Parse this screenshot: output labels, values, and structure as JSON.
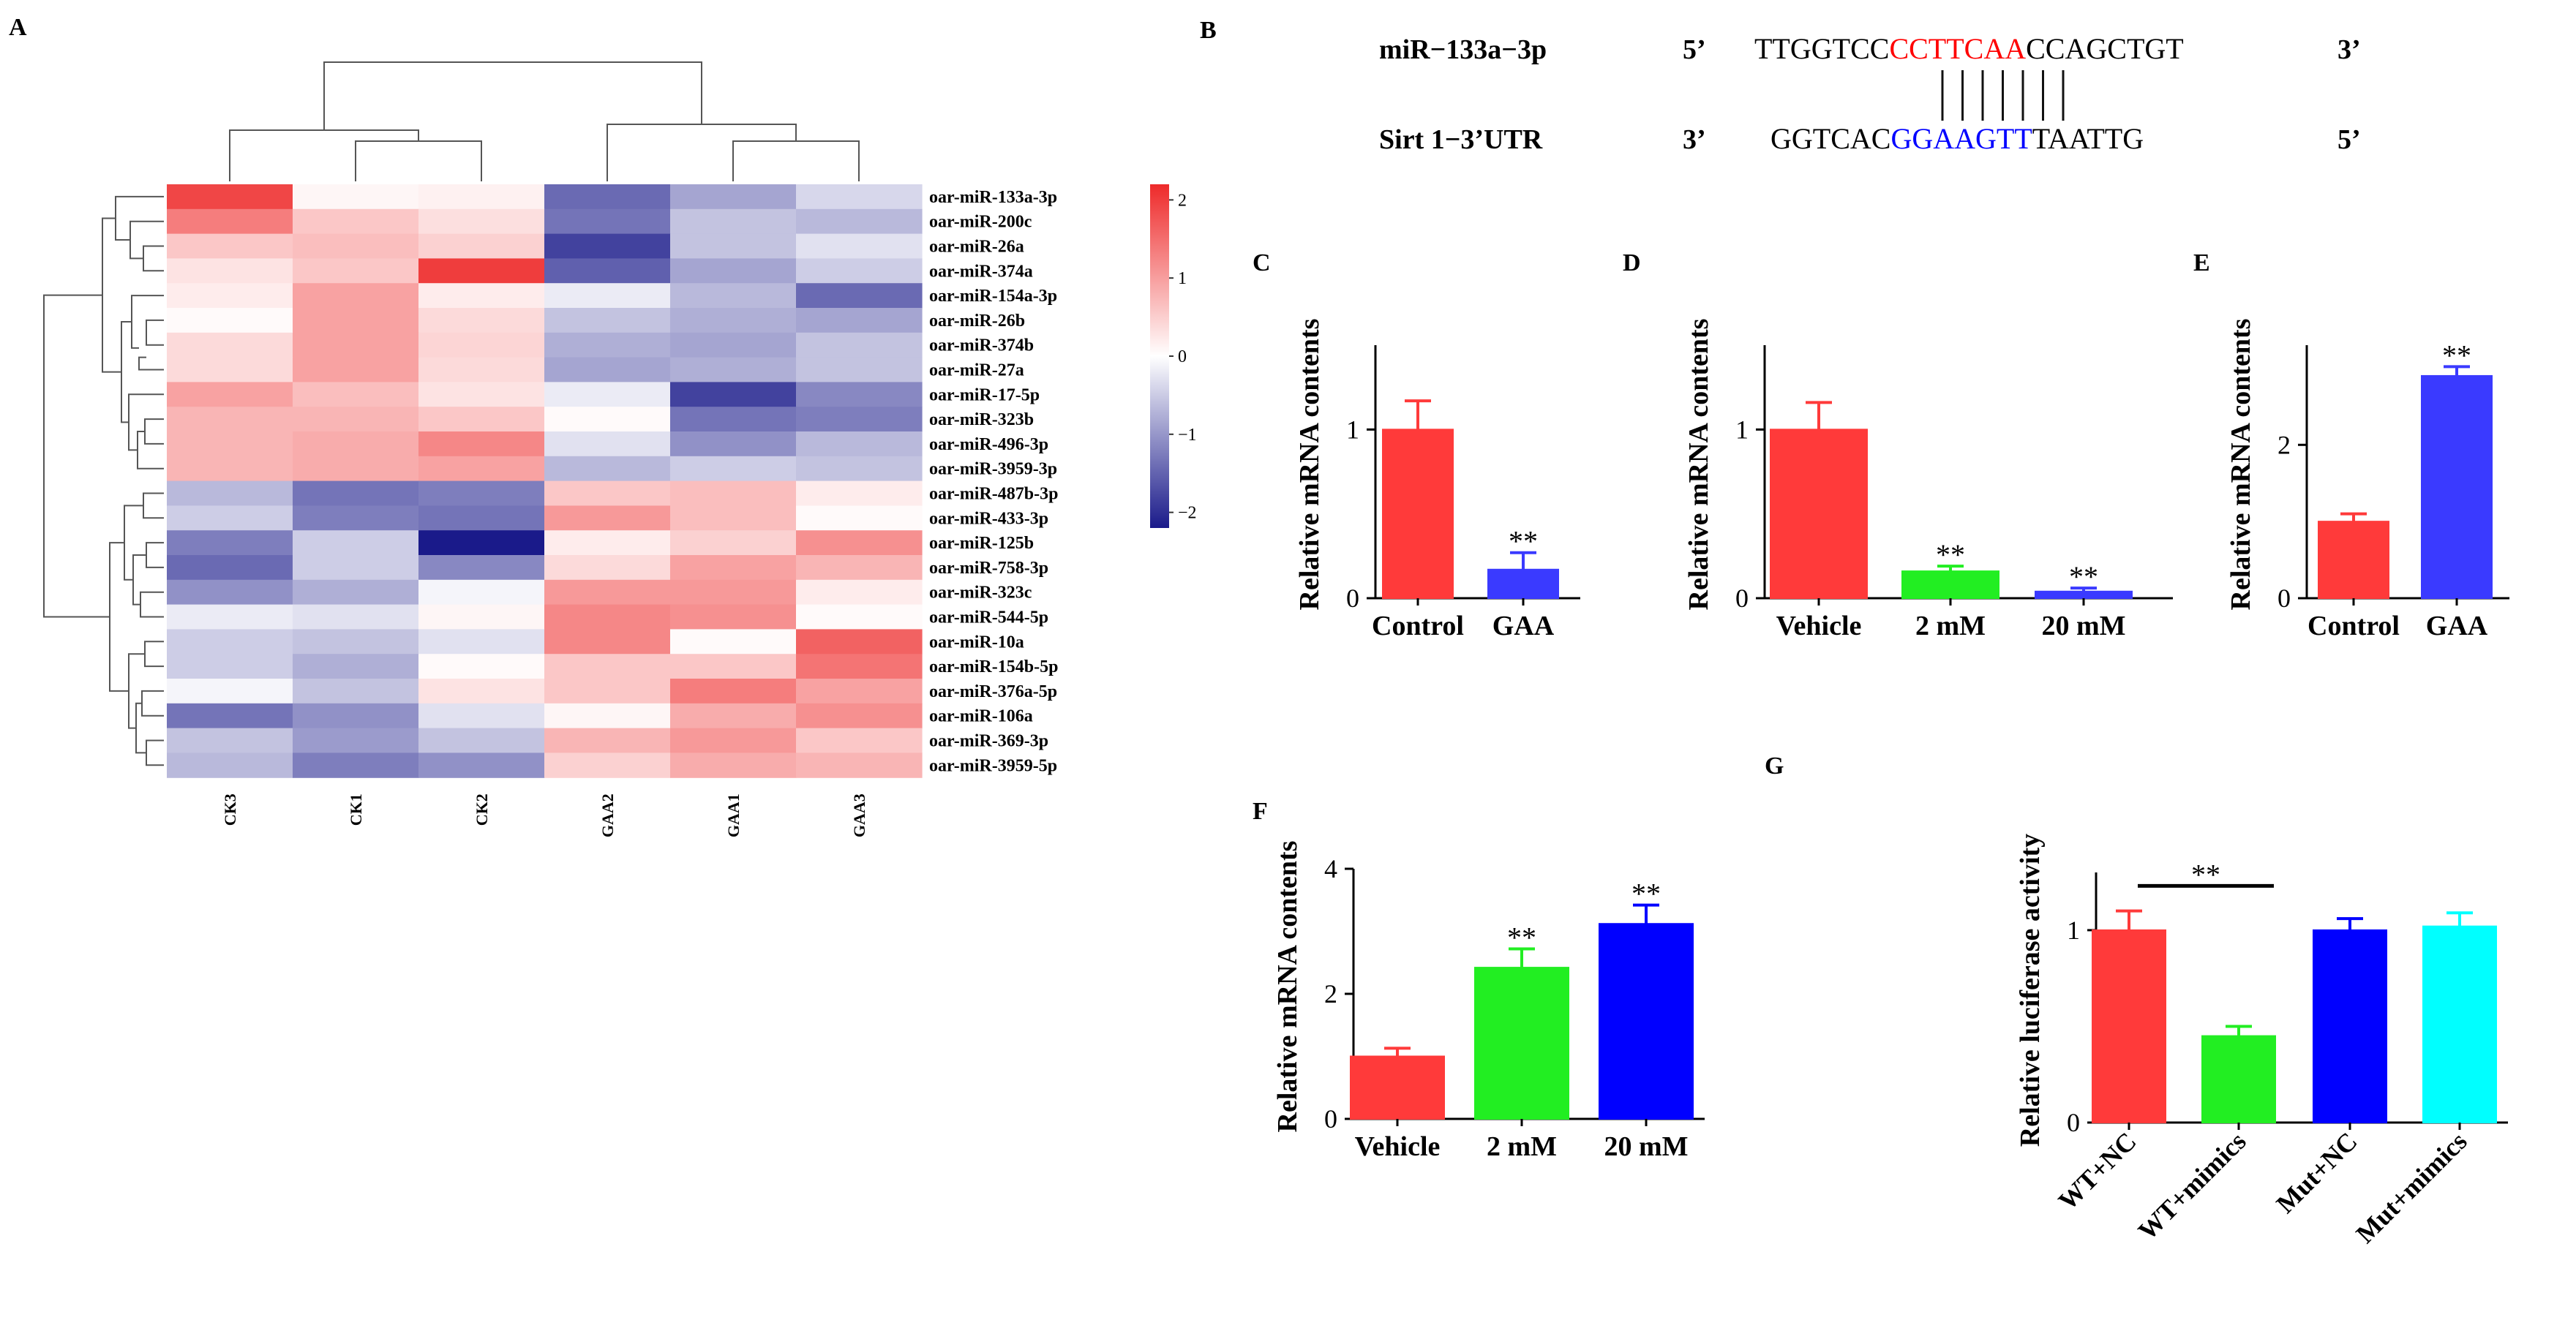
{
  "chart_data": [
    {
      "panel": "A",
      "type": "heatmap",
      "columns": [
        "CK3",
        "CK1",
        "CK2",
        "GAA2",
        "GAA1",
        "GAA3"
      ],
      "rows": [
        "oar-miR-133a-3p",
        "oar-miR-200c",
        "oar-miR-26a",
        "oar-miR-374a",
        "oar-miR-154a-3p",
        "oar-miR-26b",
        "oar-miR-374b",
        "oar-miR-27a",
        "oar-miR-17-5p",
        "oar-miR-323b",
        "oar-miR-496-3p",
        "oar-miR-3959-3p",
        "oar-miR-487b-3p",
        "oar-miR-433-3p",
        "oar-miR-125b",
        "oar-miR-758-3p",
        "oar-miR-323c",
        "oar-miR-544-5p",
        "oar-miR-10a",
        "oar-miR-154b-5p",
        "oar-miR-376a-5p",
        "oar-miR-106a",
        "oar-miR-369-3p",
        "oar-miR-3959-5p"
      ],
      "values": [
        [
          2.0,
          0.1,
          0.15,
          -1.5,
          -0.9,
          -0.4
        ],
        [
          1.4,
          0.6,
          0.35,
          -1.4,
          -0.6,
          -0.7
        ],
        [
          0.6,
          0.7,
          0.5,
          -1.9,
          -0.6,
          -0.3
        ],
        [
          0.3,
          0.6,
          2.1,
          -1.6,
          -0.9,
          -0.5
        ],
        [
          0.2,
          1.0,
          0.2,
          -0.2,
          -0.7,
          -1.5
        ],
        [
          0.05,
          1.0,
          0.4,
          -0.6,
          -0.8,
          -0.9
        ],
        [
          0.4,
          1.0,
          0.45,
          -0.8,
          -0.9,
          -0.6
        ],
        [
          0.4,
          1.0,
          0.4,
          -0.9,
          -0.8,
          -0.6
        ],
        [
          1.0,
          0.7,
          0.3,
          -0.2,
          -1.9,
          -1.2
        ],
        [
          0.8,
          0.8,
          0.6,
          0.05,
          -1.4,
          -1.3
        ],
        [
          0.8,
          0.9,
          1.3,
          -0.3,
          -1.1,
          -0.7
        ],
        [
          0.8,
          0.9,
          1.0,
          -0.7,
          -0.5,
          -0.6
        ],
        [
          -0.7,
          -1.4,
          -1.3,
          0.6,
          0.7,
          0.2
        ],
        [
          -0.5,
          -1.3,
          -1.4,
          1.1,
          0.7,
          0.05
        ],
        [
          -1.3,
          -0.5,
          -2.3,
          0.2,
          0.5,
          1.2
        ],
        [
          -1.5,
          -0.5,
          -1.2,
          0.4,
          1.0,
          0.8
        ],
        [
          -1.1,
          -0.8,
          -0.1,
          1.1,
          1.1,
          0.2
        ],
        [
          -0.2,
          -0.3,
          0.1,
          1.3,
          1.2,
          0.05
        ],
        [
          -0.5,
          -0.6,
          -0.3,
          1.3,
          0.05,
          1.7
        ],
        [
          -0.5,
          -0.8,
          0.05,
          0.6,
          0.6,
          1.5
        ],
        [
          -0.1,
          -0.6,
          0.3,
          0.6,
          1.4,
          1.0
        ],
        [
          -1.4,
          -1.1,
          -0.3,
          0.1,
          0.9,
          1.2
        ],
        [
          -0.6,
          -1.0,
          -0.6,
          0.8,
          1.1,
          0.6
        ],
        [
          -0.7,
          -1.3,
          -1.1,
          0.5,
          0.9,
          0.8
        ]
      ],
      "colorbar": {
        "ticks": [
          "2",
          "1",
          "0",
          "−1",
          "−2"
        ],
        "ylim": [
          -2.2,
          2.2
        ]
      },
      "colors": {
        "high": "#ee2a2a",
        "mid": "#ffffff",
        "low": "#1a1a8a"
      }
    },
    {
      "panel": "B",
      "type": "table",
      "rows": [
        {
          "name": "miR−133a−3p",
          "left": "5’",
          "pre": "TTGGTCC",
          "seed": "CCTTCAA",
          "post": "CCAGCTGT",
          "right": "3’",
          "seed_color": "#ff0000"
        },
        {
          "name": "Sirt 1−3’UTR",
          "left": "3’",
          "pre": "GGTCAC",
          "seed": "GGAAGTT",
          "post": "TAATTG",
          "right": "5’",
          "seed_color": "#0000ff"
        }
      ],
      "pairings": 7
    },
    {
      "panel": "C",
      "type": "bar",
      "ylabel": "Relative mRNA contents",
      "ylim": [
        0,
        1.5
      ],
      "yticks": [
        0,
        1
      ],
      "categories": [
        "Control",
        "GAA"
      ],
      "values": [
        1.0,
        0.17
      ],
      "errors": [
        0.17,
        0.1
      ],
      "colors": [
        "#ff3a3a",
        "#3a3aff"
      ],
      "annotations": [
        "",
        "**"
      ]
    },
    {
      "panel": "D",
      "type": "bar",
      "ylabel": "Relative mRNA contents",
      "ylim": [
        0,
        1.5
      ],
      "yticks": [
        0,
        1
      ],
      "categories": [
        "Vehicle",
        "2 mM",
        "20 mM"
      ],
      "values": [
        1.0,
        0.16,
        0.04
      ],
      "errors": [
        0.16,
        0.03,
        0.02
      ],
      "colors": [
        "#ff3a3a",
        "#22ee22",
        "#3a3aff"
      ],
      "annotations": [
        "",
        "**",
        "**"
      ]
    },
    {
      "panel": "E",
      "type": "bar",
      "ylabel": "Relative mRNA contents",
      "ylim": [
        0,
        3.3
      ],
      "yticks": [
        0,
        2
      ],
      "categories": [
        "Control",
        "GAA"
      ],
      "values": [
        1.0,
        2.9
      ],
      "errors": [
        0.1,
        0.12
      ],
      "colors": [
        "#ff3a3a",
        "#3a3aff"
      ],
      "annotations": [
        "",
        "**"
      ]
    },
    {
      "panel": "F",
      "type": "bar",
      "ylabel": "Relative mRNA contents",
      "ylim": [
        0,
        4
      ],
      "yticks": [
        0,
        2,
        4
      ],
      "categories": [
        "Vehicle",
        "2 mM",
        "20 mM"
      ],
      "values": [
        1.0,
        2.42,
        3.12
      ],
      "errors": [
        0.13,
        0.3,
        0.3
      ],
      "colors": [
        "#ff3a3a",
        "#22ee22",
        "#0000ff"
      ],
      "annotations": [
        "",
        "**",
        "**"
      ]
    },
    {
      "panel": "G",
      "type": "bar",
      "ylabel": "Relative luciferase activity",
      "ylim": [
        0,
        1.3
      ],
      "yticks": [
        0,
        1
      ],
      "categories": [
        "WT+NC",
        "WT+mimics",
        "Mut+NC",
        "Mut+mimics"
      ],
      "values": [
        1.0,
        0.45,
        1.0,
        1.02
      ],
      "errors": [
        0.1,
        0.05,
        0.06,
        0.07
      ],
      "colors": [
        "#ff3a3a",
        "#22ee22",
        "#0000ff",
        "#00ffff"
      ],
      "annotations": [
        "",
        "",
        "",
        ""
      ],
      "bracket": {
        "from": 0,
        "to": 1,
        "label": "**"
      }
    }
  ]
}
